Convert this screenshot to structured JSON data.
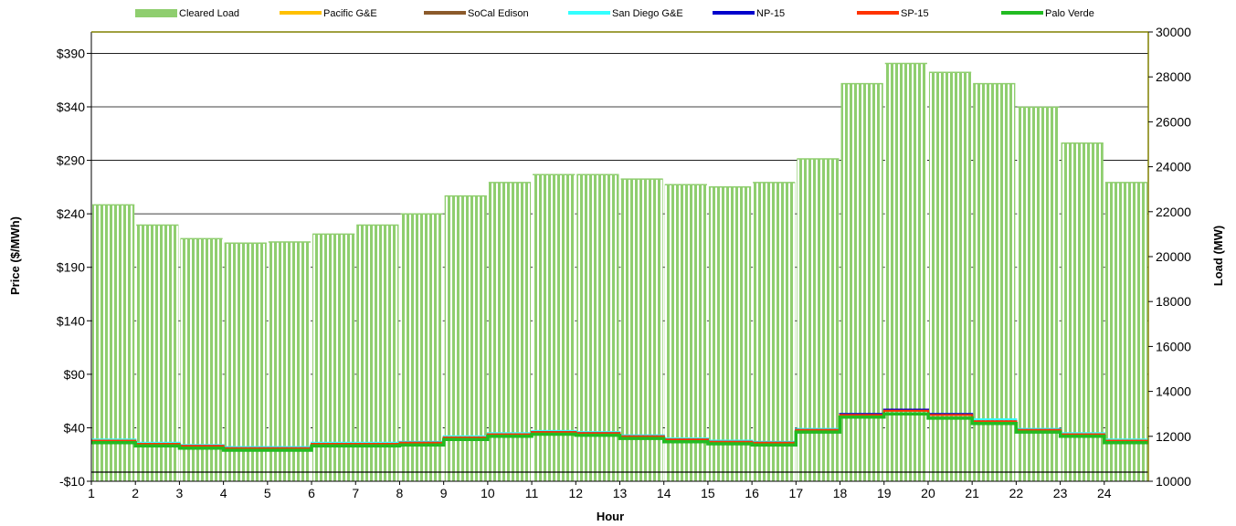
{
  "chart_data": {
    "type": "bar-line-combo",
    "xlabel": "Hour",
    "ylabel_left": "Price ($/MWh)",
    "ylabel_right": "Load (MW)",
    "ylim_left": [
      -10,
      410
    ],
    "ylim_right": [
      10000,
      30000
    ],
    "yticks_left": [
      "-$10",
      "$40",
      "$90",
      "$140",
      "$190",
      "$240",
      "$290",
      "$340",
      "$390"
    ],
    "yticks_right": [
      "10000",
      "12000",
      "14000",
      "16000",
      "18000",
      "20000",
      "22000",
      "24000",
      "26000",
      "28000",
      "30000"
    ],
    "hours": [
      "1",
      "2",
      "3",
      "4",
      "5",
      "6",
      "7",
      "8",
      "9",
      "10",
      "11",
      "12",
      "13",
      "14",
      "15",
      "16",
      "17",
      "18",
      "19",
      "20",
      "21",
      "22",
      "23",
      "24"
    ],
    "grid": "horizontal major",
    "legend_position": "top",
    "load_series": {
      "name": "Cleared Load",
      "color": "#8fce6f",
      "values": [
        22300,
        21400,
        20800,
        20600,
        20650,
        21000,
        21400,
        21900,
        22700,
        23300,
        23650,
        23650,
        23450,
        23200,
        23100,
        23300,
        24350,
        27700,
        28600,
        28200,
        27700,
        26650,
        25050,
        23300
      ]
    },
    "price_series": [
      {
        "name": "Pacific G&E",
        "color": "#ffc000",
        "values": [
          28,
          25,
          23,
          21,
          21,
          25,
          25,
          26,
          31,
          34,
          36,
          35,
          32,
          29,
          27,
          26,
          38,
          52,
          56,
          52,
          46,
          38,
          34,
          28
        ]
      },
      {
        "name": "SoCal Edison",
        "color": "#8b5a2b",
        "values": [
          28,
          25,
          23,
          21,
          21,
          25,
          25,
          26,
          31,
          34,
          36,
          35,
          32,
          29,
          27,
          26,
          38,
          52,
          56,
          52,
          46,
          38,
          34,
          28
        ]
      },
      {
        "name": "San Diego G&E",
        "color": "#33ffff",
        "values": [
          29,
          26,
          24,
          22,
          22,
          26,
          26,
          27,
          32,
          35,
          37,
          36,
          33,
          30,
          28,
          27,
          39,
          53,
          57,
          53,
          48,
          39,
          35,
          29
        ]
      },
      {
        "name": "NP-15",
        "color": "#0000cc",
        "values": [
          28,
          25,
          23,
          21,
          21,
          25,
          25,
          26,
          31,
          34,
          36,
          35,
          32,
          29,
          27,
          26,
          38,
          53,
          57,
          53,
          46,
          38,
          34,
          28
        ]
      },
      {
        "name": "SP-15",
        "color": "#ff3300",
        "values": [
          28,
          25,
          23,
          21,
          21,
          25,
          25,
          26,
          31,
          34,
          36,
          35,
          32,
          29,
          27,
          26,
          38,
          52,
          56,
          52,
          46,
          38,
          34,
          28
        ]
      },
      {
        "name": "Palo Verde",
        "color": "#22bb22",
        "values": [
          26,
          23,
          21,
          19,
          19,
          23,
          23,
          24,
          29,
          32,
          34,
          33,
          30,
          27,
          25,
          24,
          36,
          50,
          53,
          49,
          44,
          36,
          32,
          26
        ]
      }
    ]
  }
}
